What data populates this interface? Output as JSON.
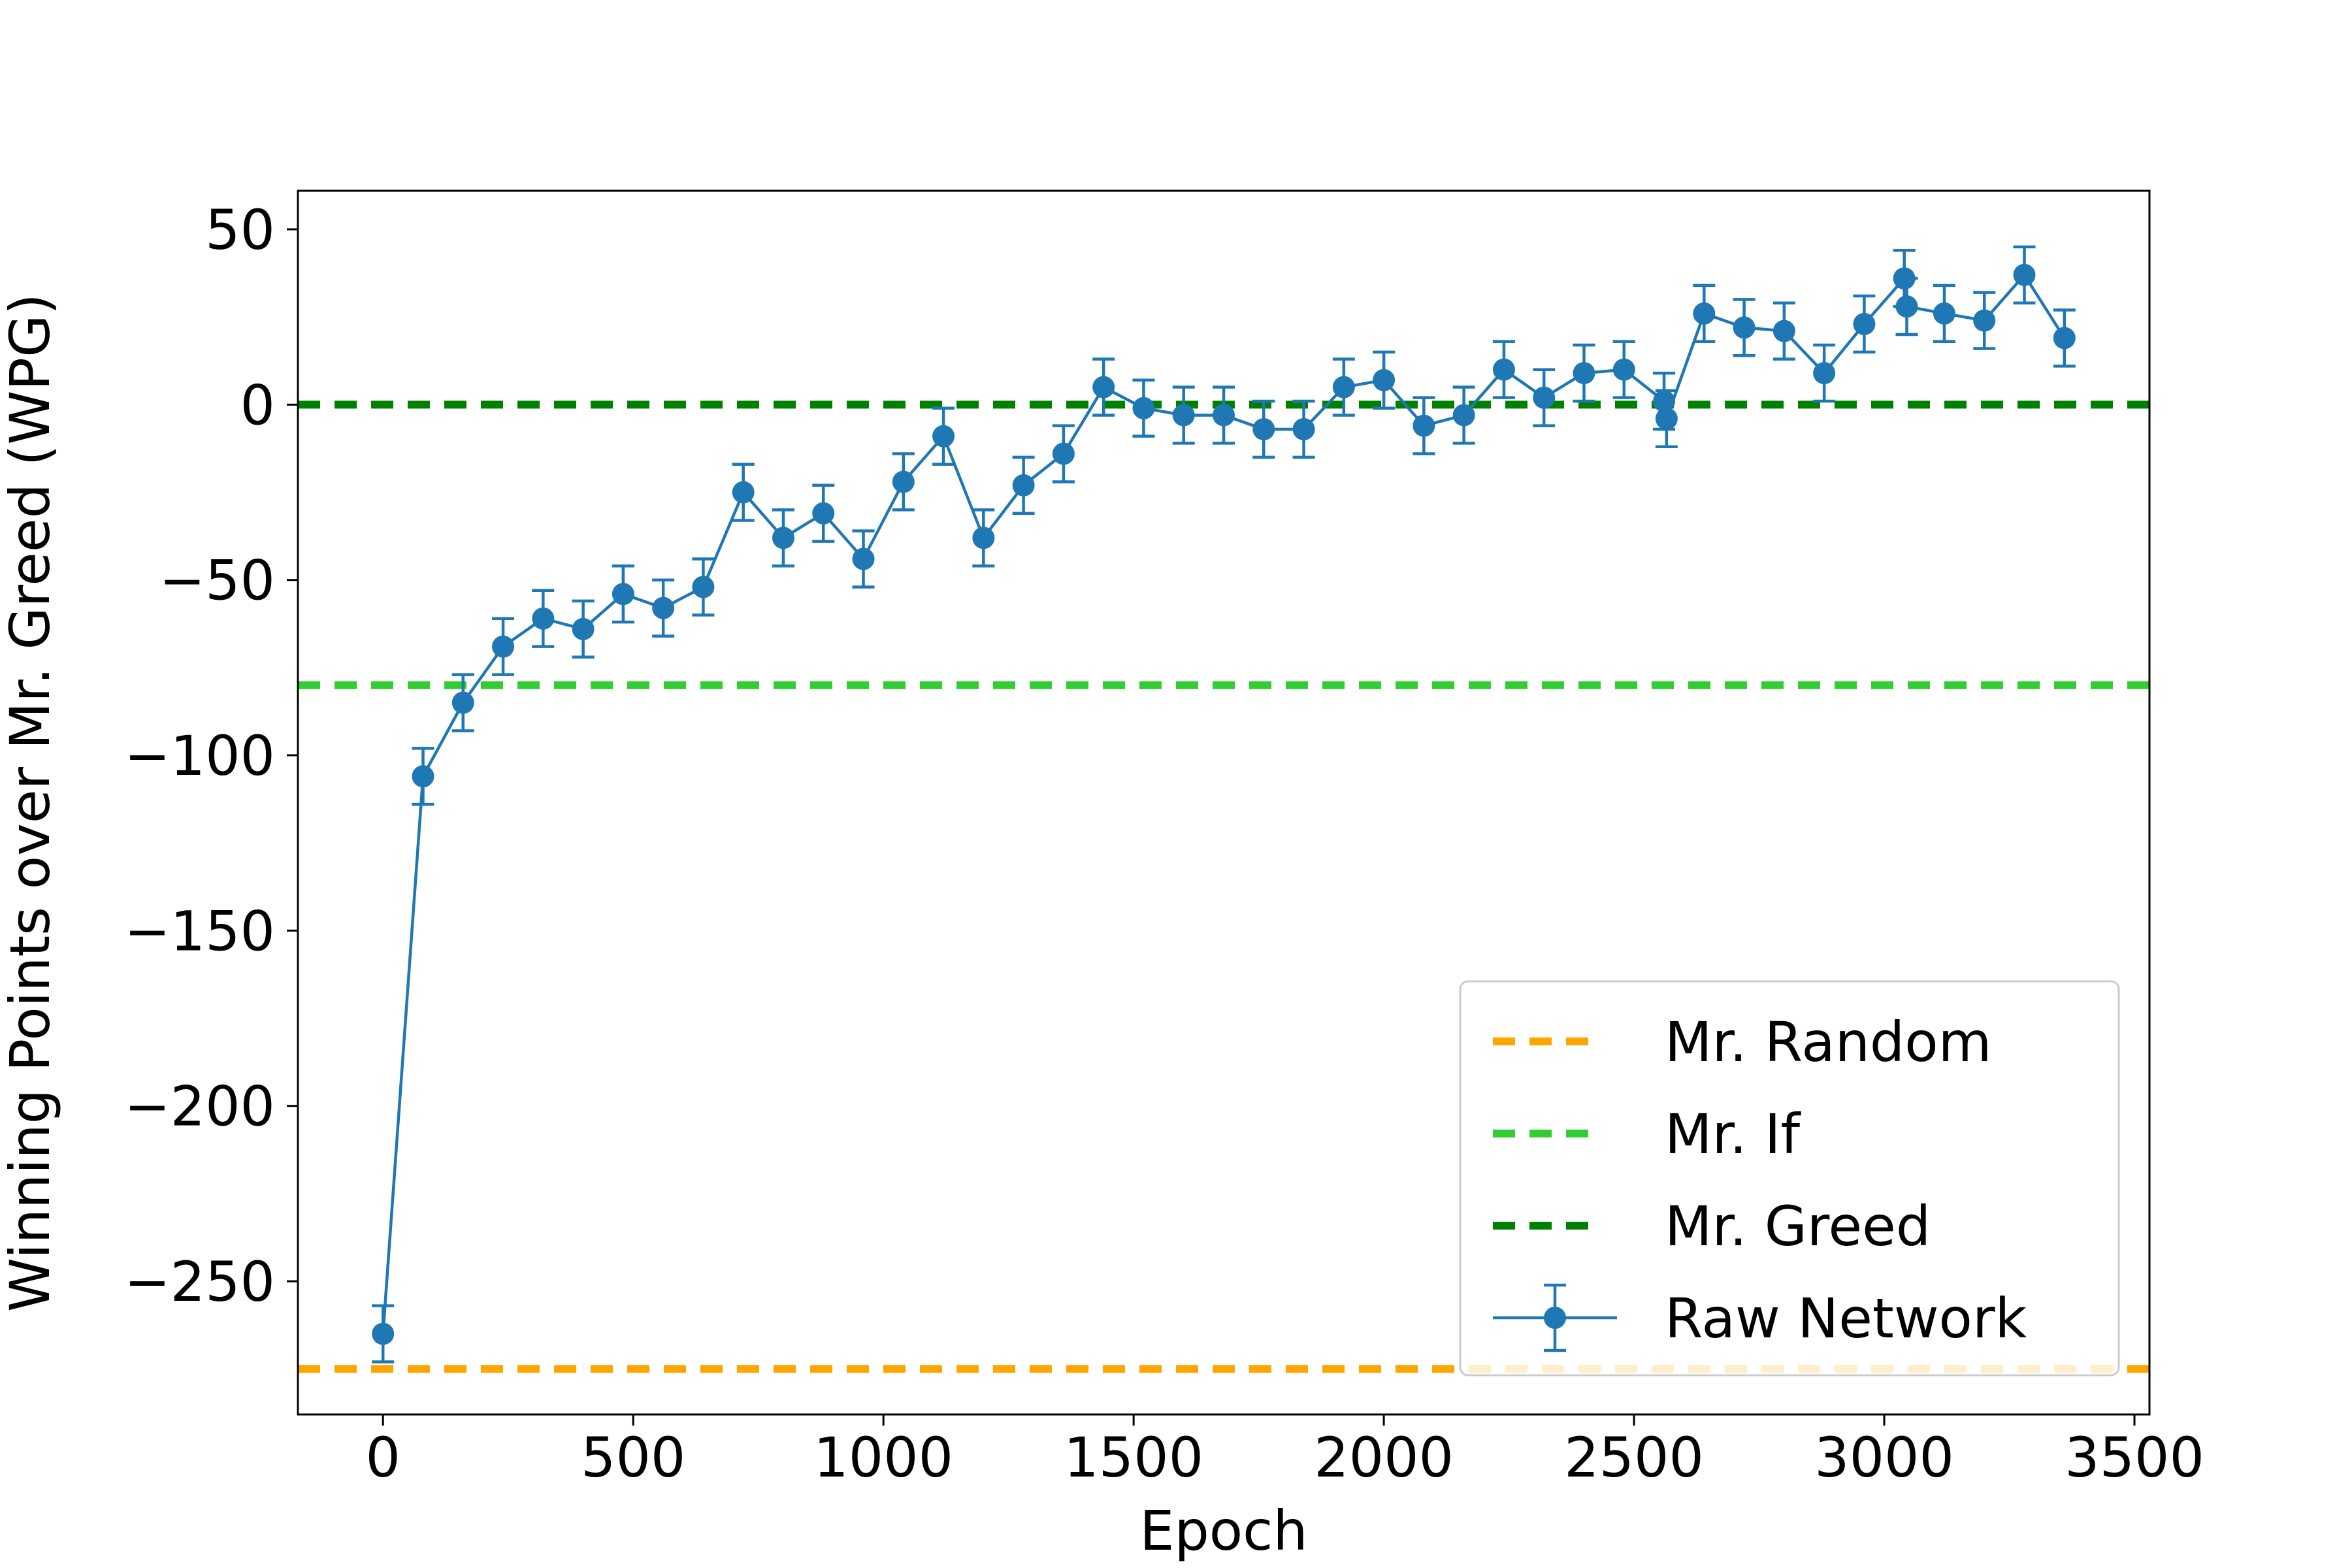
{
  "chart_data": {
    "type": "line",
    "title": "",
    "xlabel": "Epoch",
    "ylabel": "Winning Points over Mr. Greed (WPG)",
    "xlim": [
      -170,
      3530
    ],
    "ylim": [
      -288,
      61
    ],
    "xticks": [
      0,
      500,
      1000,
      1500,
      2000,
      2500,
      3000,
      3500
    ],
    "yticks": [
      50,
      0,
      -50,
      -100,
      -150,
      -200,
      -250
    ],
    "xtick_labels": [
      "0",
      "500",
      "1000",
      "1500",
      "2000",
      "2500",
      "3000",
      "3500"
    ],
    "ytick_labels": [
      "50",
      "0",
      "−50",
      "−100",
      "−150",
      "−200",
      "−250"
    ],
    "grid": false,
    "legend_position": "lower-right",
    "reference_lines": [
      {
        "name": "Mr. Random",
        "y": -275,
        "color": "#ffa500",
        "style": "dashed"
      },
      {
        "name": "Mr. If",
        "y": -80,
        "color": "#32cd32",
        "style": "dashed"
      },
      {
        "name": "Mr. Greed",
        "y": 0,
        "color": "#008000",
        "style": "dashed"
      }
    ],
    "series": [
      {
        "name": "Raw Network",
        "color": "#1f77b4",
        "marker": "circle",
        "error_bar": 8,
        "x": [
          0,
          80,
          160,
          240,
          320,
          400,
          480,
          560,
          640,
          720,
          800,
          880,
          960,
          1040,
          1120,
          1200,
          1280,
          1360,
          1440,
          1520,
          1600,
          1680,
          1760,
          1840,
          1920,
          2000,
          2080,
          2160,
          2240,
          2320,
          2400,
          2480,
          2560,
          2565,
          2640,
          2720,
          2800,
          2880,
          2960,
          3040,
          3045,
          3120,
          3200,
          3280,
          3360
        ],
        "y": [
          -265,
          -106,
          -85,
          -69,
          -61,
          -64,
          -54,
          -58,
          -52,
          -25,
          -38,
          -31,
          -44,
          -22,
          -9,
          -38,
          -23,
          -14,
          5,
          -1,
          -3,
          -3,
          -7,
          -7,
          5,
          7,
          -6,
          -3,
          10,
          2,
          9,
          10,
          1,
          -4,
          26,
          22,
          21,
          9,
          23,
          36,
          28,
          26,
          24,
          37,
          19
        ]
      }
    ]
  }
}
